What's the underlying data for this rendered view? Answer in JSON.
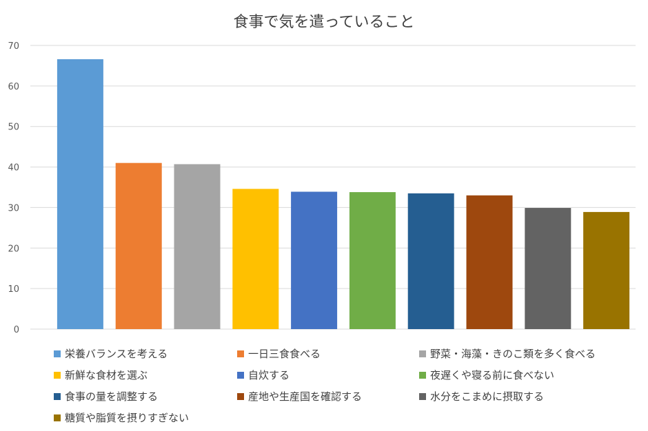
{
  "chart_data": {
    "type": "bar",
    "title": "食事で気を遣っていること",
    "ylim": [
      0,
      70
    ],
    "yticks": [
      0,
      10,
      20,
      30,
      40,
      50,
      60,
      70
    ],
    "grid": true,
    "legend_position": "bottom",
    "series": [
      {
        "name": "栄養バランスを考える",
        "value": 66.6,
        "color": "#5B9BD5"
      },
      {
        "name": "一日三食食べる",
        "value": 41.0,
        "color": "#ED7D31"
      },
      {
        "name": "野菜・海藻・きのこ類を多く食べる",
        "value": 40.7,
        "color": "#A5A5A5"
      },
      {
        "name": "新鮮な食材を選ぶ",
        "value": 34.6,
        "color": "#FFC000"
      },
      {
        "name": "自炊する",
        "value": 33.9,
        "color": "#4472C4"
      },
      {
        "name": "夜遅くや寝る前に食べない",
        "value": 33.8,
        "color": "#70AD47"
      },
      {
        "name": "食事の量を調整する",
        "value": 33.5,
        "color": "#255E91"
      },
      {
        "name": "産地や生産国を確認する",
        "value": 33.0,
        "color": "#9E480E"
      },
      {
        "name": "水分をこまめに摂取する",
        "value": 29.9,
        "color": "#636363"
      },
      {
        "name": "糖質や脂質を摂りすぎない",
        "value": 28.9,
        "color": "#997300"
      }
    ]
  }
}
